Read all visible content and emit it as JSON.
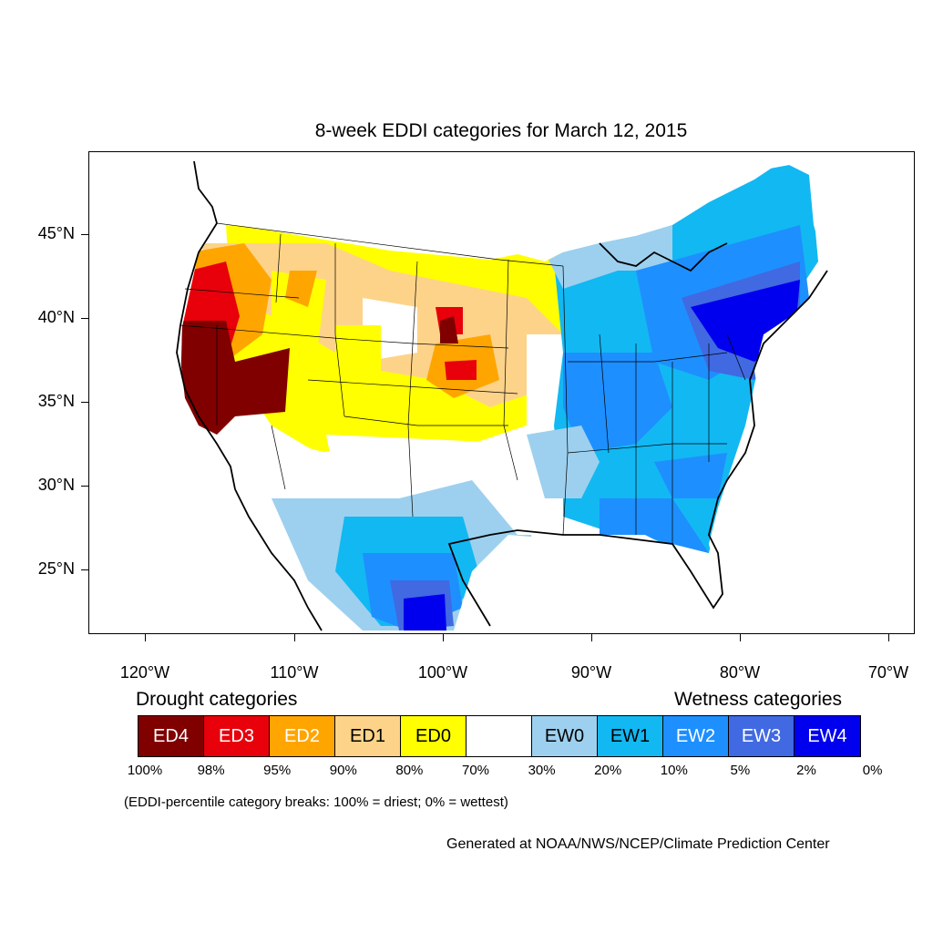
{
  "title": "8-week EDDI categories for March 12, 2015",
  "lat_labels": [
    "45°N",
    "40°N",
    "35°N",
    "30°N",
    "25°N"
  ],
  "lon_labels": [
    "120°W",
    "110°W",
    "100°W",
    "90°W",
    "80°W",
    "70°W"
  ],
  "legend": {
    "drought_heading": "Drought categories",
    "wetness_heading": "Wetness categories",
    "categories": [
      {
        "label": "ED4",
        "color": "#800000",
        "text_color": "#ffffff"
      },
      {
        "label": "ED3",
        "color": "#e8000b",
        "text_color": "#ffffff"
      },
      {
        "label": "ED2",
        "color": "#ffa500",
        "text_color": "#ffffff"
      },
      {
        "label": "ED1",
        "color": "#fdd38a",
        "text_color": "#000000"
      },
      {
        "label": "ED0",
        "color": "#ffff00",
        "text_color": "#000000"
      },
      {
        "label": "",
        "color": "#ffffff",
        "text_color": "#000000"
      },
      {
        "label": "EW0",
        "color": "#9dd0ee",
        "text_color": "#000000"
      },
      {
        "label": "EW1",
        "color": "#12b8f2",
        "text_color": "#000000"
      },
      {
        "label": "EW2",
        "color": "#1e8fff",
        "text_color": "#ffffff"
      },
      {
        "label": "EW3",
        "color": "#4169e1",
        "text_color": "#ffffff"
      },
      {
        "label": "EW4",
        "color": "#0000ee",
        "text_color": "#ffffff"
      }
    ],
    "breaks": [
      "100%",
      "98%",
      "95%",
      "90%",
      "80%",
      "70%",
      "30%",
      "20%",
      "10%",
      "5%",
      "2%",
      "0%"
    ]
  },
  "note": "(EDDI-percentile category breaks: 100% = driest; 0% = wettest)",
  "credit": "Generated at NOAA/NWS/NCEP/Climate Prediction Center"
}
